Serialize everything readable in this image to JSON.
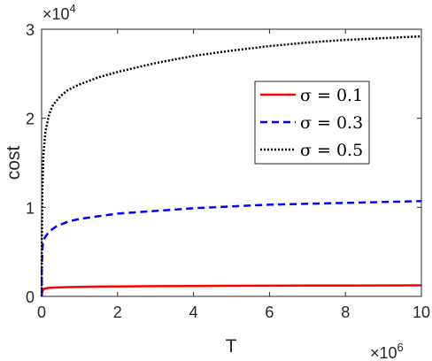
{
  "chart_data": {
    "type": "line",
    "xlabel": "T",
    "ylabel": "cost",
    "x_multiplier_label": "×10",
    "x_multiplier_exp": "6",
    "y_multiplier_label": "×10",
    "y_multiplier_exp": "4",
    "xlim": [
      0,
      10
    ],
    "ylim": [
      0,
      3
    ],
    "x_ticks": [
      0,
      2,
      4,
      6,
      8,
      10
    ],
    "y_ticks": [
      0,
      1,
      2,
      3
    ],
    "legend_position": "upper-right",
    "grid": false,
    "series": [
      {
        "name": "σ = 0.1",
        "color": "#ff0000",
        "style": "solid",
        "x": [
          0.005,
          0.02,
          0.05,
          0.1,
          0.2,
          0.4,
          0.7,
          1,
          1.5,
          2,
          3,
          4,
          5,
          6,
          7,
          8,
          9,
          10
        ],
        "y": [
          0.03,
          0.06,
          0.08,
          0.09,
          0.095,
          0.1,
          0.104,
          0.107,
          0.11,
          0.112,
          0.115,
          0.117,
          0.119,
          0.12,
          0.121,
          0.122,
          0.123,
          0.124
        ]
      },
      {
        "name": "σ = 0.3",
        "color": "#0000ff",
        "style": "dashed",
        "x": [
          0.005,
          0.02,
          0.05,
          0.1,
          0.2,
          0.4,
          0.7,
          1,
          1.5,
          2,
          3,
          4,
          5,
          6,
          7,
          8,
          9,
          10
        ],
        "y": [
          0.3,
          0.55,
          0.63,
          0.67,
          0.73,
          0.79,
          0.84,
          0.87,
          0.9,
          0.93,
          0.96,
          0.99,
          1.01,
          1.03,
          1.04,
          1.05,
          1.06,
          1.07
        ]
      },
      {
        "name": "σ = 0.5",
        "color": "#000000",
        "style": "dotted",
        "x": [
          0.005,
          0.02,
          0.05,
          0.1,
          0.2,
          0.3,
          0.5,
          0.7,
          1,
          1.5,
          2,
          3,
          4,
          5,
          6,
          7,
          8,
          9,
          10
        ],
        "y": [
          0.6,
          1.2,
          1.6,
          1.85,
          2.05,
          2.15,
          2.25,
          2.32,
          2.38,
          2.46,
          2.52,
          2.62,
          2.7,
          2.76,
          2.81,
          2.85,
          2.88,
          2.9,
          2.92
        ]
      }
    ]
  }
}
